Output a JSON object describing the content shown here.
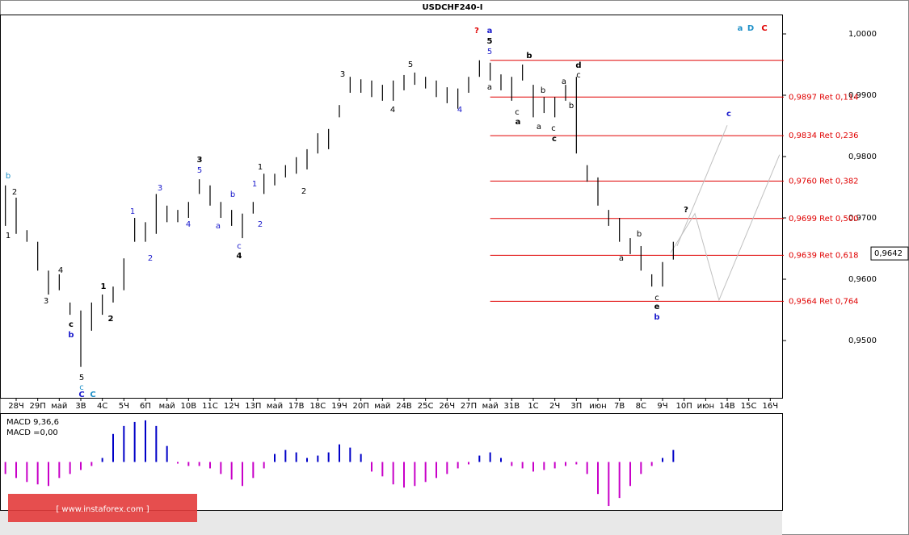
{
  "chart_data": {
    "type": "ohlc",
    "title": "USDCHF240-I",
    "ylim": [
      0.94066,
      1.00316
    ],
    "yticks": [
      {
        "value": 1.0,
        "label": "1,0000"
      },
      {
        "value": 0.99,
        "label": "0,9900"
      },
      {
        "value": 0.98,
        "label": "0,9800"
      },
      {
        "value": 0.97,
        "label": "0,9700"
      },
      {
        "value": 0.96,
        "label": "0,9600"
      },
      {
        "value": 0.95,
        "label": "0,9500"
      }
    ],
    "xlim": [
      0,
      36.3
    ],
    "xticks": [
      {
        "value": 0.75,
        "label": "28Ч"
      },
      {
        "value": 1.75,
        "label": "29П"
      },
      {
        "value": 2.75,
        "label": "май"
      },
      {
        "value": 3.75,
        "label": "3В"
      },
      {
        "value": 4.75,
        "label": "4С"
      },
      {
        "value": 5.75,
        "label": "5Ч"
      },
      {
        "value": 6.75,
        "label": "6П"
      },
      {
        "value": 7.75,
        "label": "май"
      },
      {
        "value": 8.75,
        "label": "10В"
      },
      {
        "value": 9.75,
        "label": "11С"
      },
      {
        "value": 10.75,
        "label": "12Ч"
      },
      {
        "value": 11.75,
        "label": "13П"
      },
      {
        "value": 12.75,
        "label": "май"
      },
      {
        "value": 13.75,
        "label": "17В"
      },
      {
        "value": 14.75,
        "label": "18С"
      },
      {
        "value": 15.75,
        "label": "19Ч"
      },
      {
        "value": 16.75,
        "label": "20П"
      },
      {
        "value": 17.75,
        "label": "май"
      },
      {
        "value": 18.75,
        "label": "24В"
      },
      {
        "value": 19.75,
        "label": "25С"
      },
      {
        "value": 20.75,
        "label": "26Ч"
      },
      {
        "value": 21.75,
        "label": "27П"
      },
      {
        "value": 22.75,
        "label": "май"
      },
      {
        "value": 23.75,
        "label": "31В"
      },
      {
        "value": 24.75,
        "label": "1С"
      },
      {
        "value": 25.75,
        "label": "2Ч"
      },
      {
        "value": 26.75,
        "label": "3П"
      },
      {
        "value": 27.75,
        "label": "июн"
      },
      {
        "value": 28.75,
        "label": "7В"
      },
      {
        "value": 29.75,
        "label": "8С"
      },
      {
        "value": 30.75,
        "label": "9Ч"
      },
      {
        "value": 31.75,
        "label": "10П"
      },
      {
        "value": 32.75,
        "label": "июн"
      },
      {
        "value": 33.75,
        "label": "14В"
      },
      {
        "value": 34.75,
        "label": "15С"
      },
      {
        "value": 35.75,
        "label": "16Ч"
      }
    ],
    "color": "#000000",
    "x": [
      0.25,
      0.75,
      1.25,
      1.75,
      2.25,
      2.75,
      3.25,
      3.75,
      4.25,
      4.75,
      5.25,
      5.75,
      6.25,
      6.75,
      7.25,
      7.75,
      8.25,
      8.75,
      9.25,
      9.75,
      10.25,
      10.75,
      11.25,
      11.75,
      12.25,
      12.75,
      13.25,
      13.75,
      14.25,
      14.75,
      15.25,
      15.75,
      16.25,
      16.75,
      17.25,
      17.75,
      18.25,
      18.75,
      19.25,
      19.75,
      20.25,
      20.75,
      21.25,
      21.75,
      22.25,
      22.75,
      23.25,
      23.75,
      24.25,
      24.75,
      25.25,
      25.75,
      26.25,
      26.75,
      27.25,
      27.75,
      28.25,
      28.75,
      29.25,
      29.75,
      30.25,
      30.75,
      31.25
    ],
    "high": [
      0.9753,
      0.9733,
      0.968,
      0.9661,
      0.9614,
      0.9608,
      0.9562,
      0.9549,
      0.9562,
      0.9575,
      0.9588,
      0.9634,
      0.97,
      0.9693,
      0.9739,
      0.972,
      0.9713,
      0.9726,
      0.9763,
      0.9753,
      0.9726,
      0.9713,
      0.9707,
      0.9726,
      0.9772,
      0.9772,
      0.9786,
      0.9799,
      0.9812,
      0.9838,
      0.9845,
      0.9884,
      0.993,
      0.9926,
      0.9924,
      0.9917,
      0.9924,
      0.9933,
      0.9937,
      0.993,
      0.9924,
      0.9913,
      0.9911,
      0.993,
      0.9957,
      0.9953,
      0.9934,
      0.993,
      0.995,
      0.9917,
      0.9897,
      0.9897,
      0.9917,
      0.993,
      0.9786,
      0.9766,
      0.9713,
      0.97,
      0.9667,
      0.9654,
      0.9608,
      0.9628,
      0.9661
    ],
    "low": [
      0.9687,
      0.9674,
      0.9661,
      0.9614,
      0.9575,
      0.9582,
      0.9542,
      0.9457,
      0.9516,
      0.9542,
      0.9562,
      0.9582,
      0.9661,
      0.9661,
      0.9674,
      0.9693,
      0.9693,
      0.97,
      0.9739,
      0.972,
      0.97,
      0.9687,
      0.9667,
      0.9707,
      0.9739,
      0.9753,
      0.9766,
      0.9772,
      0.9779,
      0.9805,
      0.9812,
      0.9864,
      0.9904,
      0.9904,
      0.9897,
      0.9891,
      0.9891,
      0.9908,
      0.9917,
      0.9911,
      0.9897,
      0.9887,
      0.9878,
      0.9904,
      0.993,
      0.9924,
      0.9908,
      0.9891,
      0.9924,
      0.9864,
      0.9871,
      0.9864,
      0.9891,
      0.9805,
      0.9759,
      0.972,
      0.9687,
      0.9661,
      0.9641,
      0.9614,
      0.9588,
      0.9588,
      0.9632
    ],
    "top_line": 0.9957,
    "level_color": "#e00000",
    "levels": [
      {
        "value": 0.9897,
        "label": "0,9897 Ret 0,114"
      },
      {
        "value": 0.9834,
        "label": "0,9834 Ret 0,236"
      },
      {
        "value": 0.976,
        "label": "0,9760 Ret 0,382"
      },
      {
        "value": 0.9699,
        "label": "0,9699 Ret 0,500"
      },
      {
        "value": 0.9639,
        "label": "0,9639 Ret 0,618"
      },
      {
        "value": 0.9564,
        "label": "0,9564 Ret 0,764"
      }
    ],
    "last": {
      "value": 0.9642,
      "label": "0,9642"
    },
    "projection_color": "#c0c0c0",
    "projections": [
      {
        "x": [
          31.12,
          32.25,
          33.37,
          36.18
        ],
        "y": [
          0.9643,
          0.9707,
          0.9566,
          0.9803
        ]
      },
      {
        "x": [
          31.42,
          33.75
        ],
        "y": [
          0.9654,
          0.9851
        ]
      }
    ],
    "annotations": [
      {
        "text": "b",
        "color": "#1e90c8"
      },
      {
        "text": "2",
        "color": "#000"
      },
      {
        "text": "1",
        "color": "#000"
      },
      {
        "text": "4",
        "color": "#000"
      },
      {
        "text": "3",
        "color": "#000"
      },
      {
        "text": "c",
        "color": "#000",
        "bold": true
      },
      {
        "text": "b",
        "color": "#1a1acc",
        "bold": true
      },
      {
        "text": "5",
        "color": "#000"
      },
      {
        "text": "c",
        "color": "#1e90c8"
      },
      {
        "text": "C",
        "color": "#1a1acc",
        "bold": true
      },
      {
        "text": "C",
        "color": "#1e90c8",
        "bold": true
      },
      {
        "text": "1",
        "color": "#000",
        "bold": true
      },
      {
        "text": "2",
        "color": "#000",
        "bold": true
      },
      {
        "text": "1",
        "color": "#1a1acc"
      },
      {
        "text": "2",
        "color": "#1a1acc"
      },
      {
        "text": "3",
        "color": "#1a1acc"
      },
      {
        "text": "4",
        "color": "#1a1acc"
      },
      {
        "text": "3",
        "color": "#000",
        "bold": true
      },
      {
        "text": "5",
        "color": "#1a1acc"
      },
      {
        "text": "b",
        "color": "#1a1acc"
      },
      {
        "text": "a",
        "color": "#1a1acc"
      },
      {
        "text": "c",
        "color": "#1a1acc"
      },
      {
        "text": "4",
        "color": "#000",
        "bold": true
      },
      {
        "text": "1",
        "color": "#000"
      },
      {
        "text": "1",
        "color": "#1a1acc"
      },
      {
        "text": "2",
        "color": "#1a1acc"
      },
      {
        "text": "2",
        "color": "#000"
      },
      {
        "text": "3",
        "color": "#000"
      },
      {
        "text": "4",
        "color": "#000"
      },
      {
        "text": "5",
        "color": "#000"
      },
      {
        "text": "4",
        "color": "#1a1acc"
      },
      {
        "text": "?",
        "color": "#e00000",
        "bold": true
      },
      {
        "text": "a",
        "color": "#1a1acc",
        "bold": true
      },
      {
        "text": "5",
        "color": "#000",
        "bold": true
      },
      {
        "text": "5",
        "color": "#1a1acc"
      },
      {
        "text": "a",
        "color": "#000"
      },
      {
        "text": "c",
        "color": "#000"
      },
      {
        "text": "a",
        "color": "#000",
        "bold": true
      },
      {
        "text": "b",
        "color": "#000",
        "bold": true
      },
      {
        "text": "b",
        "color": "#000"
      },
      {
        "text": "a",
        "color": "#000"
      },
      {
        "text": "c",
        "color": "#000"
      },
      {
        "text": "c",
        "color": "#000",
        "bold": true
      },
      {
        "text": "a",
        "color": "#000"
      },
      {
        "text": "b",
        "color": "#000"
      },
      {
        "text": "d",
        "color": "#000",
        "bold": true
      },
      {
        "text": "c",
        "color": "#000"
      },
      {
        "text": "b",
        "color": "#000"
      },
      {
        "text": "a",
        "color": "#000"
      },
      {
        "text": "c",
        "color": "#000"
      },
      {
        "text": "e",
        "color": "#000",
        "bold": true
      },
      {
        "text": "b",
        "color": "#1a1acc",
        "bold": true
      },
      {
        "text": "?",
        "color": "#000",
        "bold": true
      },
      {
        "text": "c",
        "color": "#1a1acc",
        "bold": true
      },
      {
        "text": "a",
        "color": "#1e90c8",
        "bold": true
      },
      {
        "text": "D",
        "color": "#1e90c8",
        "bold": true
      },
      {
        "text": "C",
        "color": "#e00000",
        "bold": true
      }
    ],
    "macd": {
      "title": "MACD 9,36,6",
      "value_label": "MACD =0,00",
      "ylim": [
        -0.006,
        0.006
      ],
      "positive_color": "#0000c8",
      "negative_color": "#c800c8",
      "values": [
        -0.0015,
        -0.002,
        -0.0025,
        -0.0028,
        -0.003,
        -0.002,
        -0.0015,
        -0.001,
        -0.0005,
        0.0005,
        0.0035,
        0.0045,
        0.005,
        0.0052,
        0.0045,
        0.002,
        -0.0002,
        -0.0005,
        -0.0005,
        -0.0008,
        -0.0015,
        -0.0022,
        -0.003,
        -0.002,
        -0.0008,
        0.001,
        0.0015,
        0.0012,
        0.0005,
        0.0008,
        0.0012,
        0.0022,
        0.0018,
        0.001,
        -0.0012,
        -0.0018,
        -0.0028,
        -0.0032,
        -0.003,
        -0.0025,
        -0.002,
        -0.0015,
        -0.0008,
        -0.0003,
        0.0008,
        0.0012,
        0.0005,
        -0.0005,
        -0.0008,
        -0.0012,
        -0.001,
        -0.0008,
        -0.0005,
        -0.0003,
        -0.0015,
        -0.004,
        -0.0055,
        -0.0045,
        -0.003,
        -0.0015,
        -0.0005,
        0.0005,
        0.0015
      ]
    },
    "watermark": "[ www.instaforex.com ]"
  }
}
